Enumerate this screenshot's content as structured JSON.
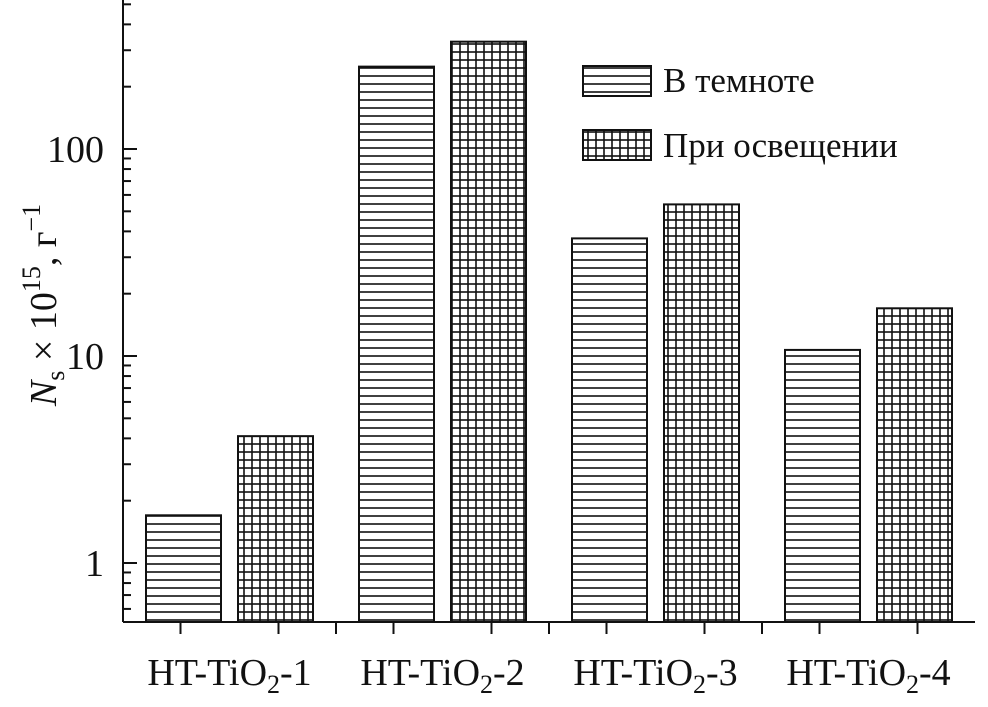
{
  "chart_data": {
    "type": "bar",
    "yscale": "log",
    "ylim": [
      0.5,
      700
    ],
    "categories": [
      {
        "main": "HT-TiO",
        "sub": "2",
        "tail": "-1"
      },
      {
        "main": "HT-TiO",
        "sub": "2",
        "tail": "-2"
      },
      {
        "main": "HT-TiO",
        "sub": "2",
        "tail": "-3"
      },
      {
        "main": "HT-TiO",
        "sub": "2",
        "tail": "-4"
      }
    ],
    "series": [
      {
        "name": "В темноте",
        "pattern": "horizontal-lines",
        "values": [
          1.7,
          250,
          37,
          10.7
        ]
      },
      {
        "name": "При освещении",
        "pattern": "grid",
        "values": [
          4.1,
          330,
          54,
          17
        ]
      }
    ],
    "yticks": [
      {
        "value": 1,
        "label": "1"
      },
      {
        "value": 10,
        "label": "10"
      },
      {
        "value": 100,
        "label": "100"
      }
    ],
    "ylabel": {
      "var": "N",
      "var_sub": "s",
      "mid": " × 10",
      "exp": "15",
      "unit": ", г",
      "unit_exp": "−1"
    },
    "legend": {
      "position": "top-right"
    },
    "colors": {
      "ink": "#111111",
      "background": "#ffffff"
    }
  }
}
